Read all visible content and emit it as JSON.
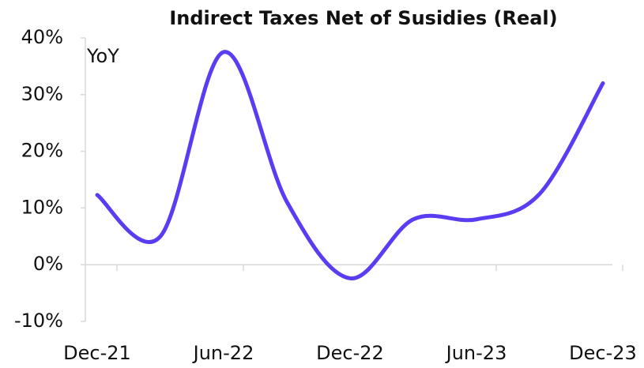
{
  "chart_data": {
    "type": "line",
    "title": "Indirect Taxes Net of Susidies (Real)",
    "annotation": "YoY",
    "categories": [
      "Dec-21",
      null,
      "Jun-22",
      null,
      "Dec-22",
      null,
      "Jun-23",
      null,
      "Dec-23"
    ],
    "series": [
      {
        "name": "YoY",
        "color": "#5b3cf2",
        "values": [
          12.3,
          5,
          37.5,
          11.1,
          -2.4,
          8,
          8,
          12.5,
          32
        ]
      }
    ],
    "ylim": [
      -10,
      40
    ],
    "yticks": [
      {
        "value": -10,
        "label": "-10%"
      },
      {
        "value": 0,
        "label": "0%"
      },
      {
        "value": 10,
        "label": "10%"
      },
      {
        "value": 20,
        "label": "20%"
      },
      {
        "value": 30,
        "label": "30%"
      },
      {
        "value": 40,
        "label": "40%"
      }
    ],
    "grid": false
  }
}
